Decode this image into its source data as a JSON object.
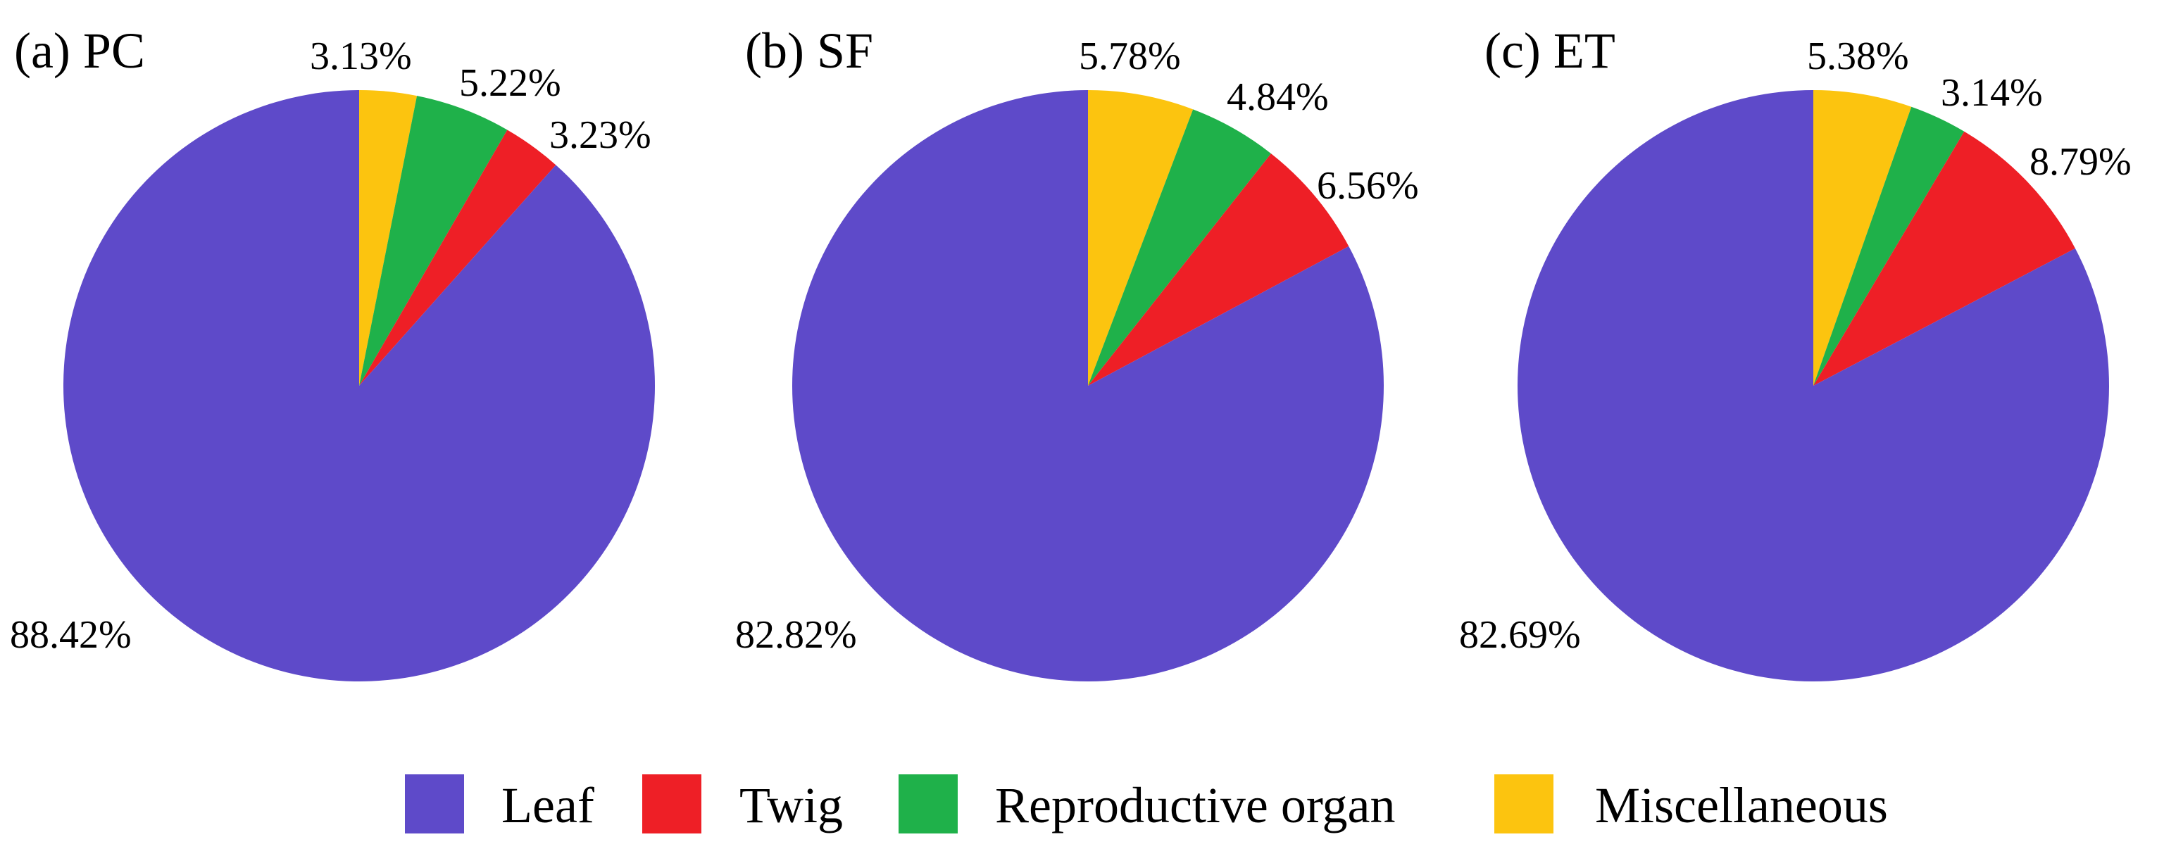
{
  "colors": {
    "Leaf": "#5e4ac9",
    "Twig": "#ee1f26",
    "Reproductive organ": "#1fb14a",
    "Miscellaneous": "#fcc40f"
  },
  "chart_data": [
    {
      "type": "pie",
      "title": "(a) PC",
      "categories": [
        "Miscellaneous",
        "Reproductive organ",
        "Twig",
        "Leaf"
      ],
      "values": [
        3.13,
        5.22,
        3.23,
        88.42
      ],
      "labels": [
        "3.13%",
        "5.22%",
        "3.23%",
        "88.42%"
      ],
      "start": "12 o'clock",
      "direction": "clockwise"
    },
    {
      "type": "pie",
      "title": "(b) SF",
      "categories": [
        "Miscellaneous",
        "Reproductive organ",
        "Twig",
        "Leaf"
      ],
      "values": [
        5.78,
        4.84,
        6.56,
        82.82
      ],
      "labels": [
        "5.78%",
        "4.84%",
        "6.56%",
        "82.82%"
      ],
      "start": "12 o'clock",
      "direction": "clockwise"
    },
    {
      "type": "pie",
      "title": "(c) ET",
      "categories": [
        "Miscellaneous",
        "Reproductive organ",
        "Twig",
        "Leaf"
      ],
      "values": [
        5.38,
        3.14,
        8.79,
        82.69
      ],
      "labels": [
        "5.38%",
        "3.14%",
        "8.79%",
        "82.69%"
      ],
      "start": "12 o'clock",
      "direction": "clockwise"
    }
  ],
  "legend": {
    "position": "bottom-center",
    "items": [
      "Leaf",
      "Twig",
      "Reproductive organ",
      "Miscellaneous"
    ]
  }
}
